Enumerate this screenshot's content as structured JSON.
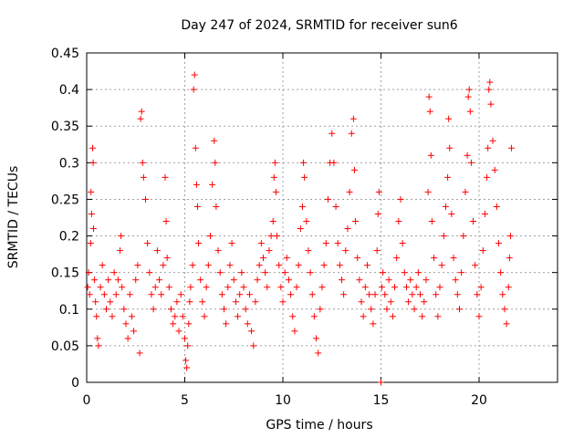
{
  "chart_data": {
    "type": "scatter",
    "title": "Day 247 of 2024, SRMTID for receiver sun6",
    "xlabel": "GPS time / hours",
    "ylabel": "SRMTID / TECUs",
    "xlim": [
      0,
      24
    ],
    "ylim": [
      0,
      0.45
    ],
    "grid": true,
    "marker": "+",
    "marker_color": "#ff0000",
    "x_ticks": [
      0,
      5,
      10,
      15,
      20
    ],
    "x_tick_labels": [
      "0",
      "5",
      "10",
      "15",
      "20"
    ],
    "y_ticks": [
      0,
      0.05,
      0.1,
      0.15,
      0.2,
      0.25,
      0.3,
      0.35,
      0.4,
      0.45
    ],
    "y_tick_labels": [
      "0",
      "0.05",
      "0.1",
      "0.15",
      "0.2",
      "0.25",
      "0.3",
      "0.35",
      "0.4",
      "0.45"
    ],
    "series": [
      {
        "name": "SRMTID",
        "points": [
          [
            0.05,
            0.13
          ],
          [
            0.1,
            0.15
          ],
          [
            0.15,
            0.12
          ],
          [
            0.2,
            0.19
          ],
          [
            0.22,
            0.26
          ],
          [
            0.25,
            0.23
          ],
          [
            0.3,
            0.32
          ],
          [
            0.33,
            0.3
          ],
          [
            0.35,
            0.21
          ],
          [
            0.4,
            0.14
          ],
          [
            0.45,
            0.11
          ],
          [
            0.5,
            0.09
          ],
          [
            0.55,
            0.06
          ],
          [
            0.6,
            0.05
          ],
          [
            0.7,
            0.13
          ],
          [
            0.8,
            0.16
          ],
          [
            0.9,
            0.12
          ],
          [
            1.0,
            0.1
          ],
          [
            1.1,
            0.14
          ],
          [
            1.2,
            0.11
          ],
          [
            1.3,
            0.09
          ],
          [
            1.4,
            0.15
          ],
          [
            1.5,
            0.12
          ],
          [
            1.6,
            0.14
          ],
          [
            1.7,
            0.18
          ],
          [
            1.75,
            0.2
          ],
          [
            1.8,
            0.13
          ],
          [
            1.9,
            0.1
          ],
          [
            2.0,
            0.08
          ],
          [
            2.1,
            0.06
          ],
          [
            2.2,
            0.12
          ],
          [
            2.3,
            0.09
          ],
          [
            2.4,
            0.07
          ],
          [
            2.5,
            0.14
          ],
          [
            2.6,
            0.16
          ],
          [
            2.7,
            0.04
          ],
          [
            2.75,
            0.36
          ],
          [
            2.8,
            0.37
          ],
          [
            2.85,
            0.3
          ],
          [
            2.9,
            0.28
          ],
          [
            3.0,
            0.25
          ],
          [
            3.1,
            0.19
          ],
          [
            3.2,
            0.15
          ],
          [
            3.3,
            0.12
          ],
          [
            3.4,
            0.1
          ],
          [
            3.5,
            0.13
          ],
          [
            3.6,
            0.18
          ],
          [
            3.7,
            0.14
          ],
          [
            3.8,
            0.12
          ],
          [
            3.9,
            0.16
          ],
          [
            4.0,
            0.28
          ],
          [
            4.05,
            0.22
          ],
          [
            4.1,
            0.17
          ],
          [
            4.2,
            0.13
          ],
          [
            4.3,
            0.1
          ],
          [
            4.4,
            0.08
          ],
          [
            4.5,
            0.09
          ],
          [
            4.6,
            0.11
          ],
          [
            4.7,
            0.07
          ],
          [
            4.8,
            0.12
          ],
          [
            4.9,
            0.09
          ],
          [
            5.0,
            0.06
          ],
          [
            5.05,
            0.03
          ],
          [
            5.1,
            0.02
          ],
          [
            5.15,
            0.05
          ],
          [
            5.2,
            0.08
          ],
          [
            5.25,
            0.11
          ],
          [
            5.3,
            0.13
          ],
          [
            5.4,
            0.16
          ],
          [
            5.45,
            0.4
          ],
          [
            5.5,
            0.42
          ],
          [
            5.55,
            0.32
          ],
          [
            5.6,
            0.27
          ],
          [
            5.65,
            0.24
          ],
          [
            5.7,
            0.19
          ],
          [
            5.8,
            0.14
          ],
          [
            5.9,
            0.11
          ],
          [
            6.0,
            0.09
          ],
          [
            6.1,
            0.13
          ],
          [
            6.2,
            0.16
          ],
          [
            6.3,
            0.2
          ],
          [
            6.4,
            0.27
          ],
          [
            6.5,
            0.33
          ],
          [
            6.55,
            0.3
          ],
          [
            6.6,
            0.24
          ],
          [
            6.7,
            0.18
          ],
          [
            6.8,
            0.15
          ],
          [
            6.9,
            0.12
          ],
          [
            7.0,
            0.1
          ],
          [
            7.1,
            0.08
          ],
          [
            7.2,
            0.13
          ],
          [
            7.3,
            0.16
          ],
          [
            7.4,
            0.19
          ],
          [
            7.5,
            0.14
          ],
          [
            7.6,
            0.11
          ],
          [
            7.7,
            0.09
          ],
          [
            7.8,
            0.12
          ],
          [
            7.9,
            0.15
          ],
          [
            8.0,
            0.13
          ],
          [
            8.1,
            0.1
          ],
          [
            8.2,
            0.08
          ],
          [
            8.3,
            0.12
          ],
          [
            8.4,
            0.07
          ],
          [
            8.5,
            0.05
          ],
          [
            8.6,
            0.11
          ],
          [
            8.7,
            0.14
          ],
          [
            8.8,
            0.16
          ],
          [
            8.9,
            0.19
          ],
          [
            9.0,
            0.17
          ],
          [
            9.1,
            0.15
          ],
          [
            9.2,
            0.13
          ],
          [
            9.3,
            0.18
          ],
          [
            9.4,
            0.2
          ],
          [
            9.5,
            0.22
          ],
          [
            9.55,
            0.28
          ],
          [
            9.6,
            0.3
          ],
          [
            9.65,
            0.26
          ],
          [
            9.7,
            0.2
          ],
          [
            9.8,
            0.16
          ],
          [
            9.9,
            0.13
          ],
          [
            10.0,
            0.11
          ],
          [
            10.1,
            0.15
          ],
          [
            10.2,
            0.17
          ],
          [
            10.3,
            0.14
          ],
          [
            10.4,
            0.12
          ],
          [
            10.5,
            0.09
          ],
          [
            10.6,
            0.07
          ],
          [
            10.7,
            0.13
          ],
          [
            10.8,
            0.16
          ],
          [
            10.9,
            0.21
          ],
          [
            11.0,
            0.24
          ],
          [
            11.05,
            0.3
          ],
          [
            11.1,
            0.28
          ],
          [
            11.2,
            0.22
          ],
          [
            11.3,
            0.18
          ],
          [
            11.4,
            0.15
          ],
          [
            11.5,
            0.12
          ],
          [
            11.6,
            0.09
          ],
          [
            11.7,
            0.06
          ],
          [
            11.8,
            0.04
          ],
          [
            11.9,
            0.1
          ],
          [
            12.0,
            0.13
          ],
          [
            12.1,
            0.16
          ],
          [
            12.2,
            0.19
          ],
          [
            12.3,
            0.25
          ],
          [
            12.4,
            0.3
          ],
          [
            12.5,
            0.34
          ],
          [
            12.6,
            0.3
          ],
          [
            12.7,
            0.24
          ],
          [
            12.8,
            0.19
          ],
          [
            12.9,
            0.16
          ],
          [
            13.0,
            0.14
          ],
          [
            13.1,
            0.12
          ],
          [
            13.2,
            0.18
          ],
          [
            13.3,
            0.21
          ],
          [
            13.4,
            0.26
          ],
          [
            13.5,
            0.34
          ],
          [
            13.6,
            0.36
          ],
          [
            13.65,
            0.29
          ],
          [
            13.7,
            0.22
          ],
          [
            13.8,
            0.17
          ],
          [
            13.9,
            0.14
          ],
          [
            14.0,
            0.11
          ],
          [
            14.1,
            0.09
          ],
          [
            14.2,
            0.13
          ],
          [
            14.3,
            0.16
          ],
          [
            14.4,
            0.12
          ],
          [
            14.5,
            0.1
          ],
          [
            14.6,
            0.08
          ],
          [
            14.7,
            0.12
          ],
          [
            14.8,
            0.18
          ],
          [
            14.85,
            0.23
          ],
          [
            14.9,
            0.26
          ],
          [
            15.0,
            0.0
          ],
          [
            15.05,
            0.13
          ],
          [
            15.1,
            0.15
          ],
          [
            15.2,
            0.12
          ],
          [
            15.3,
            0.1
          ],
          [
            15.4,
            0.14
          ],
          [
            15.5,
            0.11
          ],
          [
            15.6,
            0.09
          ],
          [
            15.7,
            0.13
          ],
          [
            15.8,
            0.17
          ],
          [
            15.9,
            0.22
          ],
          [
            16.0,
            0.25
          ],
          [
            16.1,
            0.19
          ],
          [
            16.2,
            0.15
          ],
          [
            16.3,
            0.13
          ],
          [
            16.4,
            0.11
          ],
          [
            16.5,
            0.14
          ],
          [
            16.6,
            0.12
          ],
          [
            16.7,
            0.1
          ],
          [
            16.8,
            0.13
          ],
          [
            16.9,
            0.15
          ],
          [
            17.0,
            0.12
          ],
          [
            17.1,
            0.09
          ],
          [
            17.2,
            0.11
          ],
          [
            17.3,
            0.14
          ],
          [
            17.4,
            0.26
          ],
          [
            17.45,
            0.39
          ],
          [
            17.5,
            0.37
          ],
          [
            17.55,
            0.31
          ],
          [
            17.6,
            0.22
          ],
          [
            17.7,
            0.17
          ],
          [
            17.8,
            0.12
          ],
          [
            17.9,
            0.09
          ],
          [
            18.0,
            0.13
          ],
          [
            18.1,
            0.16
          ],
          [
            18.2,
            0.2
          ],
          [
            18.3,
            0.24
          ],
          [
            18.4,
            0.28
          ],
          [
            18.45,
            0.36
          ],
          [
            18.5,
            0.32
          ],
          [
            18.6,
            0.23
          ],
          [
            18.7,
            0.17
          ],
          [
            18.8,
            0.14
          ],
          [
            18.9,
            0.12
          ],
          [
            19.0,
            0.1
          ],
          [
            19.1,
            0.15
          ],
          [
            19.2,
            0.2
          ],
          [
            19.3,
            0.26
          ],
          [
            19.4,
            0.31
          ],
          [
            19.45,
            0.39
          ],
          [
            19.5,
            0.4
          ],
          [
            19.55,
            0.37
          ],
          [
            19.6,
            0.3
          ],
          [
            19.7,
            0.22
          ],
          [
            19.8,
            0.16
          ],
          [
            19.9,
            0.12
          ],
          [
            20.0,
            0.09
          ],
          [
            20.1,
            0.13
          ],
          [
            20.2,
            0.18
          ],
          [
            20.3,
            0.23
          ],
          [
            20.4,
            0.28
          ],
          [
            20.45,
            0.32
          ],
          [
            20.5,
            0.4
          ],
          [
            20.55,
            0.41
          ],
          [
            20.6,
            0.38
          ],
          [
            20.7,
            0.33
          ],
          [
            20.8,
            0.29
          ],
          [
            20.9,
            0.24
          ],
          [
            21.0,
            0.19
          ],
          [
            21.1,
            0.15
          ],
          [
            21.2,
            0.12
          ],
          [
            21.3,
            0.1
          ],
          [
            21.4,
            0.08
          ],
          [
            21.5,
            0.13
          ],
          [
            21.55,
            0.17
          ],
          [
            21.6,
            0.2
          ],
          [
            21.65,
            0.32
          ]
        ]
      }
    ]
  }
}
